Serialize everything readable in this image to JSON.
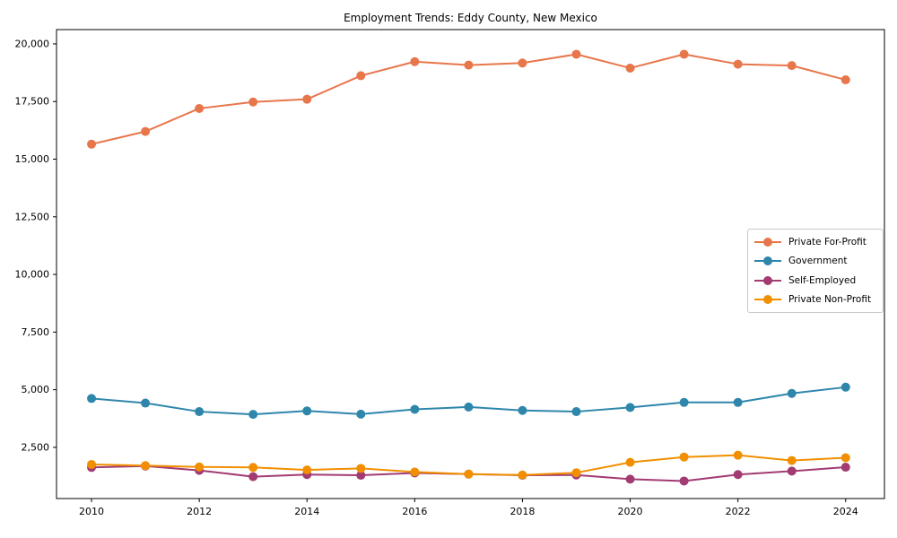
{
  "chart_data": {
    "type": "line",
    "title": "Employment Trends: Eddy County, New Mexico",
    "xlabel": "",
    "ylabel": "",
    "grid": false,
    "legend_position": "center right",
    "xlim": [
      2009.35,
      2024.72
    ],
    "ylim": [
      280,
      20620
    ],
    "x": [
      2010,
      2011,
      2012,
      2013,
      2014,
      2015,
      2016,
      2017,
      2018,
      2019,
      2020,
      2021,
      2022,
      2023,
      2024
    ],
    "x_ticks": [
      2010,
      2012,
      2014,
      2016,
      2018,
      2020,
      2022,
      2024
    ],
    "x_tick_labels": [
      "2010",
      "2012",
      "2014",
      "2016",
      "2018",
      "2020",
      "2022",
      "2024"
    ],
    "y_ticks": [
      2500,
      5000,
      7500,
      10000,
      12500,
      15000,
      17500,
      20000
    ],
    "y_tick_labels": [
      "2,500",
      "5,000",
      "7,500",
      "10,000",
      "12,500",
      "15,000",
      "17,500",
      "20,000"
    ],
    "series": [
      {
        "name": "Private For-Profit",
        "color": "#E8764B",
        "marker": "circle",
        "values": [
          15650,
          16200,
          17200,
          17480,
          17600,
          18620,
          19230,
          19080,
          19170,
          19550,
          18950,
          19550,
          19120,
          19060,
          18440
        ]
      },
      {
        "name": "Government",
        "color": "#2E86AB",
        "marker": "circle",
        "values": [
          4620,
          4420,
          4050,
          3930,
          4080,
          3940,
          4150,
          4250,
          4100,
          4050,
          4230,
          4450,
          4450,
          4840,
          5110
        ]
      },
      {
        "name": "Self-Employed",
        "color": "#A23B72",
        "marker": "circle",
        "values": [
          1630,
          1690,
          1500,
          1230,
          1320,
          1290,
          1390,
          1340,
          1290,
          1300,
          1120,
          1040,
          1320,
          1470,
          1640
        ]
      },
      {
        "name": "Private Non-Profit",
        "color": "#F18F01",
        "marker": "circle",
        "values": [
          1760,
          1710,
          1650,
          1630,
          1520,
          1590,
          1430,
          1340,
          1300,
          1400,
          1850,
          2080,
          2160,
          1930,
          2050
        ]
      }
    ]
  }
}
